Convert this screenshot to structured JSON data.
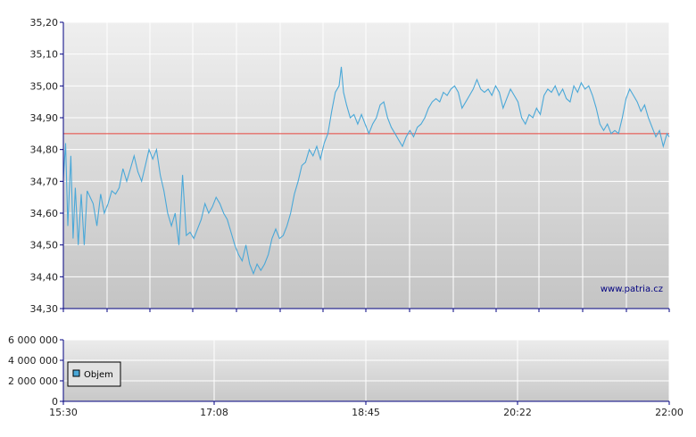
{
  "watermark": "www.patria.cz",
  "colors": {
    "price_line": "#4aa8d8",
    "reference_line": "#e8453c",
    "axis": "#000080",
    "grid": "#ffffff",
    "bg_top": "#efefef",
    "bg_bottom": "#c4c4c4",
    "legend_swatch": "#4aa8d8"
  },
  "chart_data": [
    {
      "type": "line",
      "title": "",
      "xlabel": "",
      "ylabel": "",
      "x_ticks": [
        "15:30",
        "17:08",
        "18:45",
        "20:22",
        "22:00"
      ],
      "y_ticks": [
        "34,30",
        "34,40",
        "34,50",
        "34,60",
        "34,70",
        "34,80",
        "34,90",
        "35,00",
        "35,10",
        "35,20"
      ],
      "ylim": [
        34.3,
        35.2
      ],
      "grid": true,
      "reference_line": 34.85,
      "series": [
        {
          "name": "",
          "points": [
            [
              0,
              34.71
            ],
            [
              0.3,
              34.82
            ],
            [
              0.6,
              34.56
            ],
            [
              1,
              34.78
            ],
            [
              1.3,
              34.52
            ],
            [
              1.6,
              34.68
            ],
            [
              2,
              34.5
            ],
            [
              2.4,
              34.66
            ],
            [
              2.8,
              34.5
            ],
            [
              3.2,
              34.67
            ],
            [
              4,
              34.63
            ],
            [
              4.5,
              34.56
            ],
            [
              5,
              34.66
            ],
            [
              5.5,
              34.6
            ],
            [
              6,
              34.63
            ],
            [
              6.5,
              34.67
            ],
            [
              7,
              34.66
            ],
            [
              7.5,
              34.68
            ],
            [
              8,
              34.74
            ],
            [
              8.5,
              34.7
            ],
            [
              9,
              34.74
            ],
            [
              9.5,
              34.78
            ],
            [
              10,
              34.73
            ],
            [
              10.5,
              34.7
            ],
            [
              11,
              34.75
            ],
            [
              11.5,
              34.8
            ],
            [
              12,
              34.77
            ],
            [
              12.5,
              34.8
            ],
            [
              13,
              34.72
            ],
            [
              13.5,
              34.67
            ],
            [
              14,
              34.6
            ],
            [
              14.5,
              34.56
            ],
            [
              15,
              34.6
            ],
            [
              15.5,
              34.5
            ],
            [
              16,
              34.72
            ],
            [
              16.5,
              34.53
            ],
            [
              17,
              34.54
            ],
            [
              17.5,
              34.52
            ],
            [
              18,
              34.55
            ],
            [
              18.5,
              34.58
            ],
            [
              19,
              34.63
            ],
            [
              19.5,
              34.6
            ],
            [
              20,
              34.62
            ],
            [
              20.5,
              34.65
            ],
            [
              21,
              34.63
            ],
            [
              21.5,
              34.6
            ],
            [
              22,
              34.58
            ],
            [
              22.5,
              34.54
            ],
            [
              23,
              34.5
            ],
            [
              23.5,
              34.47
            ],
            [
              24,
              34.45
            ],
            [
              24.5,
              34.5
            ],
            [
              25,
              34.44
            ],
            [
              25.5,
              34.41
            ],
            [
              26,
              34.44
            ],
            [
              26.5,
              34.42
            ],
            [
              27,
              34.44
            ],
            [
              27.5,
              34.47
            ],
            [
              28,
              34.52
            ],
            [
              28.5,
              34.55
            ],
            [
              29,
              34.52
            ],
            [
              29.5,
              34.53
            ],
            [
              30,
              34.56
            ],
            [
              30.5,
              34.6
            ],
            [
              31,
              34.66
            ],
            [
              31.5,
              34.7
            ],
            [
              32,
              34.75
            ],
            [
              32.5,
              34.76
            ],
            [
              33,
              34.8
            ],
            [
              33.5,
              34.78
            ],
            [
              34,
              34.81
            ],
            [
              34.5,
              34.77
            ],
            [
              35,
              34.82
            ],
            [
              35.5,
              34.85
            ],
            [
              36,
              34.92
            ],
            [
              36.5,
              34.98
            ],
            [
              37,
              35.0
            ],
            [
              37.3,
              35.06
            ],
            [
              37.6,
              34.98
            ],
            [
              38,
              34.94
            ],
            [
              38.5,
              34.9
            ],
            [
              39,
              34.91
            ],
            [
              39.5,
              34.88
            ],
            [
              40,
              34.91
            ],
            [
              40.5,
              34.88
            ],
            [
              41,
              34.85
            ],
            [
              41.5,
              34.88
            ],
            [
              42,
              34.9
            ],
            [
              42.5,
              34.94
            ],
            [
              43,
              34.95
            ],
            [
              43.5,
              34.9
            ],
            [
              44,
              34.87
            ],
            [
              44.5,
              34.85
            ],
            [
              45,
              34.83
            ],
            [
              45.5,
              34.81
            ],
            [
              46,
              34.84
            ],
            [
              46.5,
              34.86
            ],
            [
              47,
              34.84
            ],
            [
              47.5,
              34.87
            ],
            [
              48,
              34.88
            ],
            [
              48.5,
              34.9
            ],
            [
              49,
              34.93
            ],
            [
              49.5,
              34.95
            ],
            [
              50,
              34.96
            ],
            [
              50.5,
              34.95
            ],
            [
              51,
              34.98
            ],
            [
              51.5,
              34.97
            ],
            [
              52,
              34.99
            ],
            [
              52.5,
              35.0
            ],
            [
              53,
              34.98
            ],
            [
              53.5,
              34.93
            ],
            [
              54,
              34.95
            ],
            [
              54.5,
              34.97
            ],
            [
              55,
              34.99
            ],
            [
              55.5,
              35.02
            ],
            [
              56,
              34.99
            ],
            [
              56.5,
              34.98
            ],
            [
              57,
              34.99
            ],
            [
              57.5,
              34.97
            ],
            [
              58,
              35.0
            ],
            [
              58.5,
              34.98
            ],
            [
              59,
              34.93
            ],
            [
              59.5,
              34.96
            ],
            [
              60,
              34.99
            ],
            [
              60.5,
              34.97
            ],
            [
              61,
              34.95
            ],
            [
              61.5,
              34.9
            ],
            [
              62,
              34.88
            ],
            [
              62.5,
              34.91
            ],
            [
              63,
              34.9
            ],
            [
              63.5,
              34.93
            ],
            [
              64,
              34.91
            ],
            [
              64.5,
              34.97
            ],
            [
              65,
              34.99
            ],
            [
              65.5,
              34.98
            ],
            [
              66,
              35.0
            ],
            [
              66.5,
              34.97
            ],
            [
              67,
              34.99
            ],
            [
              67.5,
              34.96
            ],
            [
              68,
              34.95
            ],
            [
              68.5,
              35.0
            ],
            [
              69,
              34.98
            ],
            [
              69.5,
              35.01
            ],
            [
              70,
              34.99
            ],
            [
              70.5,
              35.0
            ],
            [
              71,
              34.97
            ],
            [
              71.5,
              34.93
            ],
            [
              72,
              34.88
            ],
            [
              72.5,
              34.86
            ],
            [
              73,
              34.88
            ],
            [
              73.5,
              34.85
            ],
            [
              74,
              34.86
            ],
            [
              74.5,
              34.85
            ],
            [
              75,
              34.9
            ],
            [
              75.5,
              34.96
            ],
            [
              76,
              34.99
            ],
            [
              76.5,
              34.97
            ],
            [
              77,
              34.95
            ],
            [
              77.5,
              34.92
            ],
            [
              78,
              34.94
            ],
            [
              78.5,
              34.9
            ],
            [
              79,
              34.87
            ],
            [
              79.5,
              34.84
            ],
            [
              80,
              34.86
            ],
            [
              80.5,
              34.81
            ],
            [
              81,
              34.85
            ],
            [
              81.3,
              34.84
            ]
          ]
        }
      ]
    },
    {
      "type": "bar",
      "title": "",
      "xlabel": "",
      "ylabel": "",
      "x_ticks": [
        "15:30",
        "17:08",
        "18:45",
        "20:22",
        "22:00"
      ],
      "y_ticks": [
        "0",
        "2 000 000",
        "4 000 000",
        "6 000 000"
      ],
      "ylim": [
        0,
        6000000
      ],
      "grid": true,
      "legend": [
        "Objem"
      ],
      "legend_position": "bottom-left",
      "series": [
        {
          "name": "Objem",
          "values": []
        }
      ]
    }
  ]
}
